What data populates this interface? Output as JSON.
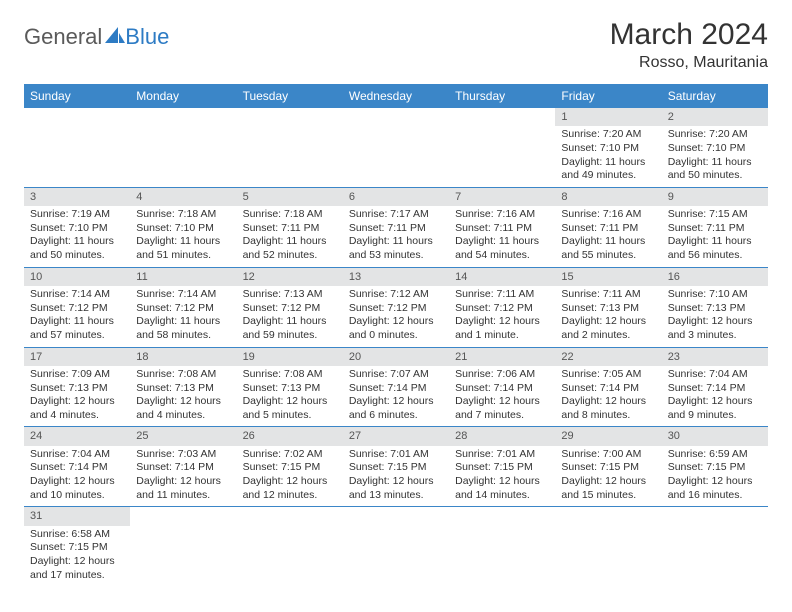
{
  "brand": {
    "general": "General",
    "blue": "Blue"
  },
  "title": "March 2024",
  "location": "Rosso, Mauritania",
  "colors": {
    "header_bg": "#3b86c8",
    "header_text": "#ffffff",
    "row_divider": "#3b86c8",
    "daynum_bg": "#e3e4e5",
    "logo_gray": "#5a5a5a",
    "logo_blue": "#2d7bc4"
  },
  "day_labels": [
    "Sunday",
    "Monday",
    "Tuesday",
    "Wednesday",
    "Thursday",
    "Friday",
    "Saturday"
  ],
  "weeks": [
    [
      null,
      null,
      null,
      null,
      null,
      {
        "n": "1",
        "sunrise": "Sunrise: 7:20 AM",
        "sunset": "Sunset: 7:10 PM",
        "day1": "Daylight: 11 hours",
        "day2": "and 49 minutes."
      },
      {
        "n": "2",
        "sunrise": "Sunrise: 7:20 AM",
        "sunset": "Sunset: 7:10 PM",
        "day1": "Daylight: 11 hours",
        "day2": "and 50 minutes."
      }
    ],
    [
      {
        "n": "3",
        "sunrise": "Sunrise: 7:19 AM",
        "sunset": "Sunset: 7:10 PM",
        "day1": "Daylight: 11 hours",
        "day2": "and 50 minutes."
      },
      {
        "n": "4",
        "sunrise": "Sunrise: 7:18 AM",
        "sunset": "Sunset: 7:10 PM",
        "day1": "Daylight: 11 hours",
        "day2": "and 51 minutes."
      },
      {
        "n": "5",
        "sunrise": "Sunrise: 7:18 AM",
        "sunset": "Sunset: 7:11 PM",
        "day1": "Daylight: 11 hours",
        "day2": "and 52 minutes."
      },
      {
        "n": "6",
        "sunrise": "Sunrise: 7:17 AM",
        "sunset": "Sunset: 7:11 PM",
        "day1": "Daylight: 11 hours",
        "day2": "and 53 minutes."
      },
      {
        "n": "7",
        "sunrise": "Sunrise: 7:16 AM",
        "sunset": "Sunset: 7:11 PM",
        "day1": "Daylight: 11 hours",
        "day2": "and 54 minutes."
      },
      {
        "n": "8",
        "sunrise": "Sunrise: 7:16 AM",
        "sunset": "Sunset: 7:11 PM",
        "day1": "Daylight: 11 hours",
        "day2": "and 55 minutes."
      },
      {
        "n": "9",
        "sunrise": "Sunrise: 7:15 AM",
        "sunset": "Sunset: 7:11 PM",
        "day1": "Daylight: 11 hours",
        "day2": "and 56 minutes."
      }
    ],
    [
      {
        "n": "10",
        "sunrise": "Sunrise: 7:14 AM",
        "sunset": "Sunset: 7:12 PM",
        "day1": "Daylight: 11 hours",
        "day2": "and 57 minutes."
      },
      {
        "n": "11",
        "sunrise": "Sunrise: 7:14 AM",
        "sunset": "Sunset: 7:12 PM",
        "day1": "Daylight: 11 hours",
        "day2": "and 58 minutes."
      },
      {
        "n": "12",
        "sunrise": "Sunrise: 7:13 AM",
        "sunset": "Sunset: 7:12 PM",
        "day1": "Daylight: 11 hours",
        "day2": "and 59 minutes."
      },
      {
        "n": "13",
        "sunrise": "Sunrise: 7:12 AM",
        "sunset": "Sunset: 7:12 PM",
        "day1": "Daylight: 12 hours",
        "day2": "and 0 minutes."
      },
      {
        "n": "14",
        "sunrise": "Sunrise: 7:11 AM",
        "sunset": "Sunset: 7:12 PM",
        "day1": "Daylight: 12 hours",
        "day2": "and 1 minute."
      },
      {
        "n": "15",
        "sunrise": "Sunrise: 7:11 AM",
        "sunset": "Sunset: 7:13 PM",
        "day1": "Daylight: 12 hours",
        "day2": "and 2 minutes."
      },
      {
        "n": "16",
        "sunrise": "Sunrise: 7:10 AM",
        "sunset": "Sunset: 7:13 PM",
        "day1": "Daylight: 12 hours",
        "day2": "and 3 minutes."
      }
    ],
    [
      {
        "n": "17",
        "sunrise": "Sunrise: 7:09 AM",
        "sunset": "Sunset: 7:13 PM",
        "day1": "Daylight: 12 hours",
        "day2": "and 4 minutes."
      },
      {
        "n": "18",
        "sunrise": "Sunrise: 7:08 AM",
        "sunset": "Sunset: 7:13 PM",
        "day1": "Daylight: 12 hours",
        "day2": "and 4 minutes."
      },
      {
        "n": "19",
        "sunrise": "Sunrise: 7:08 AM",
        "sunset": "Sunset: 7:13 PM",
        "day1": "Daylight: 12 hours",
        "day2": "and 5 minutes."
      },
      {
        "n": "20",
        "sunrise": "Sunrise: 7:07 AM",
        "sunset": "Sunset: 7:14 PM",
        "day1": "Daylight: 12 hours",
        "day2": "and 6 minutes."
      },
      {
        "n": "21",
        "sunrise": "Sunrise: 7:06 AM",
        "sunset": "Sunset: 7:14 PM",
        "day1": "Daylight: 12 hours",
        "day2": "and 7 minutes."
      },
      {
        "n": "22",
        "sunrise": "Sunrise: 7:05 AM",
        "sunset": "Sunset: 7:14 PM",
        "day1": "Daylight: 12 hours",
        "day2": "and 8 minutes."
      },
      {
        "n": "23",
        "sunrise": "Sunrise: 7:04 AM",
        "sunset": "Sunset: 7:14 PM",
        "day1": "Daylight: 12 hours",
        "day2": "and 9 minutes."
      }
    ],
    [
      {
        "n": "24",
        "sunrise": "Sunrise: 7:04 AM",
        "sunset": "Sunset: 7:14 PM",
        "day1": "Daylight: 12 hours",
        "day2": "and 10 minutes."
      },
      {
        "n": "25",
        "sunrise": "Sunrise: 7:03 AM",
        "sunset": "Sunset: 7:14 PM",
        "day1": "Daylight: 12 hours",
        "day2": "and 11 minutes."
      },
      {
        "n": "26",
        "sunrise": "Sunrise: 7:02 AM",
        "sunset": "Sunset: 7:15 PM",
        "day1": "Daylight: 12 hours",
        "day2": "and 12 minutes."
      },
      {
        "n": "27",
        "sunrise": "Sunrise: 7:01 AM",
        "sunset": "Sunset: 7:15 PM",
        "day1": "Daylight: 12 hours",
        "day2": "and 13 minutes."
      },
      {
        "n": "28",
        "sunrise": "Sunrise: 7:01 AM",
        "sunset": "Sunset: 7:15 PM",
        "day1": "Daylight: 12 hours",
        "day2": "and 14 minutes."
      },
      {
        "n": "29",
        "sunrise": "Sunrise: 7:00 AM",
        "sunset": "Sunset: 7:15 PM",
        "day1": "Daylight: 12 hours",
        "day2": "and 15 minutes."
      },
      {
        "n": "30",
        "sunrise": "Sunrise: 6:59 AM",
        "sunset": "Sunset: 7:15 PM",
        "day1": "Daylight: 12 hours",
        "day2": "and 16 minutes."
      }
    ],
    [
      {
        "n": "31",
        "sunrise": "Sunrise: 6:58 AM",
        "sunset": "Sunset: 7:15 PM",
        "day1": "Daylight: 12 hours",
        "day2": "and 17 minutes."
      },
      null,
      null,
      null,
      null,
      null,
      null
    ]
  ]
}
